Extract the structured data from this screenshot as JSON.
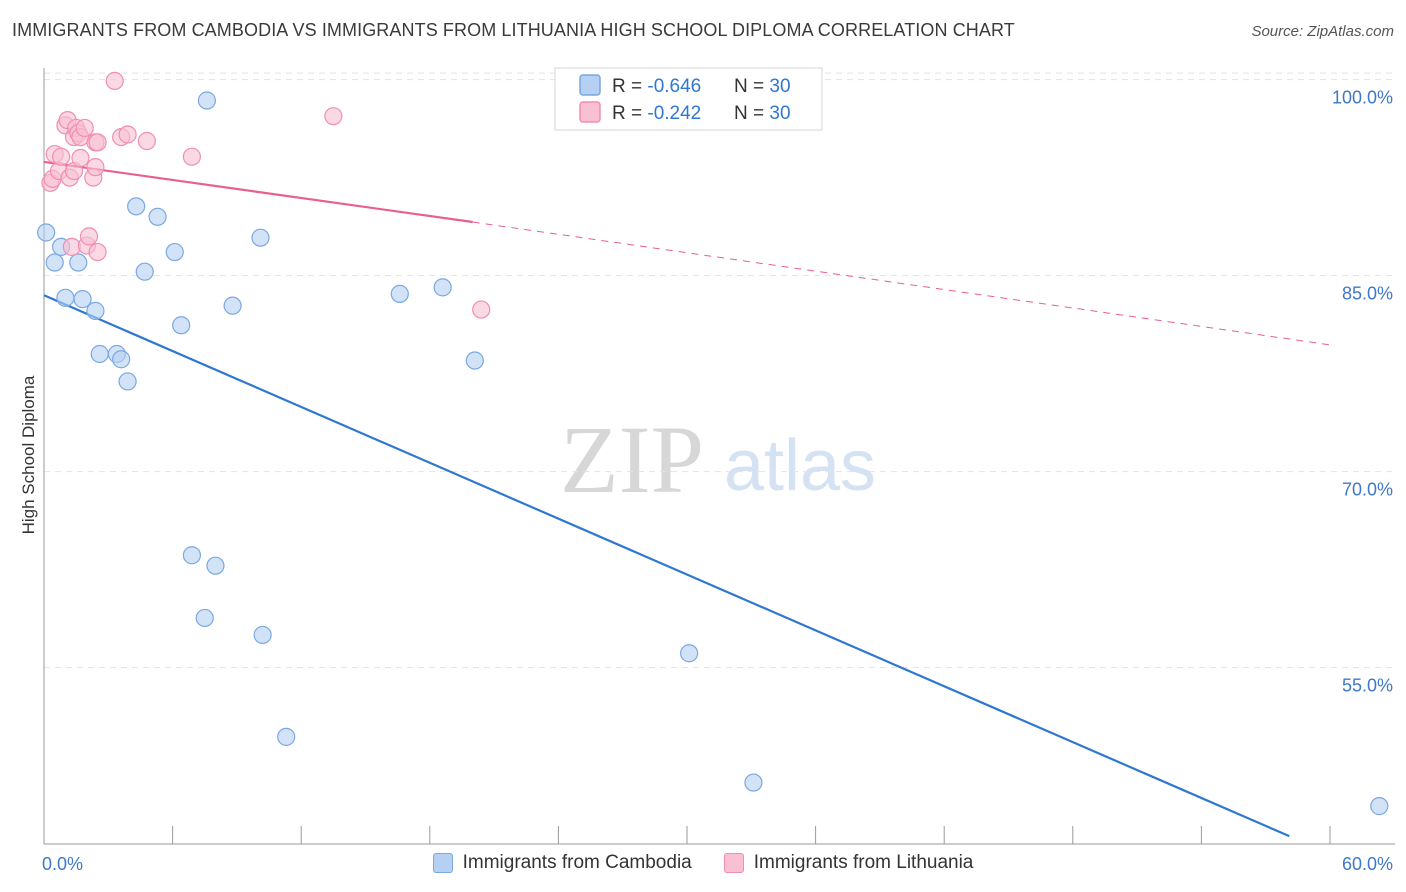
{
  "header": {
    "title": "IMMIGRANTS FROM CAMBODIA VS IMMIGRANTS FROM LITHUANIA HIGH SCHOOL DIPLOMA CORRELATION CHART",
    "source": "Source: ZipAtlas.com"
  },
  "watermark": {
    "zip": "ZIP",
    "atlas": "atlas"
  },
  "stats": [
    {
      "r_label": "R = ",
      "r_value": "-0.646",
      "n_label": "N = ",
      "n_value": "30"
    },
    {
      "r_label": "R = ",
      "r_value": "-0.242",
      "n_label": "N = ",
      "n_value": "30"
    }
  ],
  "colors": {
    "cambodia_fill": "#b5d0f2",
    "cambodia_stroke": "#7aa8e0",
    "cambodia_line": "#2f77d1",
    "lithuania_fill": "#f9c0d2",
    "lithuania_stroke": "#f08eb0",
    "lithuania_line": "#e8608f",
    "axis_label": "#3f78c8",
    "grid": "#e3e3e3"
  },
  "chart_data": {
    "type": "scatter",
    "title": "IMMIGRANTS FROM CAMBODIA VS IMMIGRANTS FROM LITHUANIA HIGH SCHOOL DIPLOMA CORRELATION CHART",
    "xlabel": "",
    "ylabel": "High School Diploma",
    "xlim": [
      0,
      60
    ],
    "ylim": [
      41.5,
      101.5
    ],
    "x_tick_labels": [
      "0.0%",
      "60.0%"
    ],
    "y_ticks": [
      55,
      70,
      85,
      100
    ],
    "y_tick_labels": [
      "55.0%",
      "70.0%",
      "85.0%",
      "100.0%"
    ],
    "grid": true,
    "legend_position": "bottom-center",
    "series": [
      {
        "name": "Immigrants from Cambodia",
        "points": [
          [
            0.1,
            88.3
          ],
          [
            0.5,
            86.0
          ],
          [
            0.8,
            87.2
          ],
          [
            1.0,
            83.3
          ],
          [
            1.6,
            86.0
          ],
          [
            1.8,
            83.2
          ],
          [
            2.4,
            82.3
          ],
          [
            2.6,
            79.0
          ],
          [
            3.4,
            79.0
          ],
          [
            3.6,
            78.6
          ],
          [
            3.9,
            76.9
          ],
          [
            4.3,
            90.3
          ],
          [
            4.7,
            85.3
          ],
          [
            5.3,
            89.5
          ],
          [
            6.1,
            86.8
          ],
          [
            6.4,
            81.2
          ],
          [
            6.9,
            63.6
          ],
          [
            7.5,
            58.8
          ],
          [
            7.6,
            98.4
          ],
          [
            8.0,
            62.8
          ],
          [
            8.8,
            82.7
          ],
          [
            10.1,
            87.9
          ],
          [
            10.2,
            57.5
          ],
          [
            11.3,
            49.7
          ],
          [
            16.6,
            83.6
          ],
          [
            18.6,
            84.1
          ],
          [
            20.1,
            78.5
          ],
          [
            30.1,
            56.1
          ],
          [
            33.1,
            46.2
          ],
          [
            62.3,
            44.4
          ]
        ],
        "trend": {
          "x": [
            0,
            58.1
          ],
          "y": [
            83.5,
            42.1
          ],
          "r": -0.646,
          "n": 30
        }
      },
      {
        "name": "Immigrants from Lithuania",
        "points": [
          [
            0.3,
            92.1
          ],
          [
            0.4,
            92.4
          ],
          [
            0.5,
            94.3
          ],
          [
            0.7,
            93.0
          ],
          [
            0.8,
            94.1
          ],
          [
            1.0,
            96.5
          ],
          [
            1.1,
            96.9
          ],
          [
            1.2,
            92.5
          ],
          [
            1.3,
            87.2
          ],
          [
            1.4,
            93.0
          ],
          [
            1.4,
            95.6
          ],
          [
            1.5,
            96.3
          ],
          [
            1.6,
            95.9
          ],
          [
            1.7,
            94.0
          ],
          [
            1.7,
            95.6
          ],
          [
            1.9,
            96.3
          ],
          [
            2.0,
            87.3
          ],
          [
            2.1,
            88.0
          ],
          [
            2.3,
            92.5
          ],
          [
            2.4,
            95.2
          ],
          [
            2.4,
            93.3
          ],
          [
            2.5,
            95.2
          ],
          [
            2.5,
            86.8
          ],
          [
            3.3,
            99.9
          ],
          [
            3.6,
            95.6
          ],
          [
            3.9,
            95.8
          ],
          [
            4.8,
            95.3
          ],
          [
            6.9,
            94.1
          ],
          [
            13.5,
            97.2
          ],
          [
            20.4,
            82.4
          ]
        ],
        "trend": {
          "x": [
            0,
            20
          ],
          "y": [
            93.7,
            89.1
          ],
          "r": -0.242,
          "n": 30
        },
        "trend_dashed": {
          "x": [
            20,
            60
          ],
          "y": [
            89.1,
            79.7
          ]
        }
      }
    ]
  }
}
